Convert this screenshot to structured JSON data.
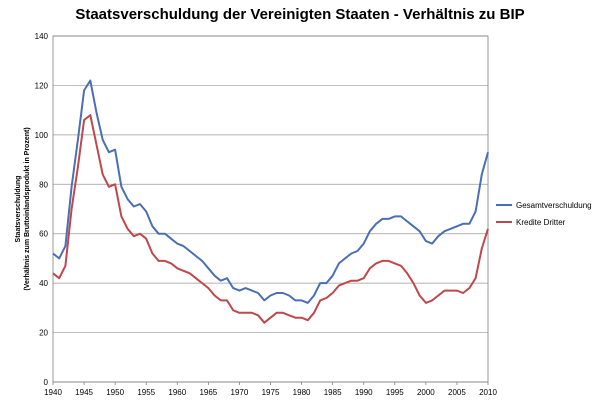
{
  "chart_data": {
    "type": "line",
    "title": "Staatsverschuldung der Vereinigten Staaten - Verhältnis zu BIP",
    "ylabel": "Staatsverschuldung",
    "ylabel_sub": "(Verhältnis zum Bruttoinlandsprodukt  in Prozent)",
    "xlabel": "",
    "ylim": [
      0,
      140
    ],
    "xlim": [
      1940,
      2010
    ],
    "yticks": [
      0,
      20,
      40,
      60,
      80,
      100,
      120,
      140
    ],
    "xticks": [
      1940,
      1945,
      1950,
      1955,
      1960,
      1965,
      1970,
      1975,
      1980,
      1985,
      1990,
      1995,
      2000,
      2005,
      2010
    ],
    "grid": "horizontal",
    "legend_position": "right",
    "x": [
      1940,
      1941,
      1942,
      1943,
      1944,
      1945,
      1946,
      1947,
      1948,
      1949,
      1950,
      1951,
      1952,
      1953,
      1954,
      1955,
      1956,
      1957,
      1958,
      1959,
      1960,
      1961,
      1962,
      1963,
      1964,
      1965,
      1966,
      1967,
      1968,
      1969,
      1970,
      1971,
      1972,
      1973,
      1974,
      1975,
      1976,
      1977,
      1978,
      1979,
      1980,
      1981,
      1982,
      1983,
      1984,
      1985,
      1986,
      1987,
      1988,
      1989,
      1990,
      1991,
      1992,
      1993,
      1994,
      1995,
      1996,
      1997,
      1998,
      1999,
      2000,
      2001,
      2002,
      2003,
      2004,
      2005,
      2006,
      2007,
      2008,
      2009,
      2010
    ],
    "series": [
      {
        "name": "Gesamtverschuldung",
        "color": "#4a6fb5",
        "values": [
          52,
          50,
          55,
          79,
          98,
          118,
          122,
          109,
          98,
          93,
          94,
          79,
          74,
          71,
          72,
          69,
          63,
          60,
          60,
          58,
          56,
          55,
          53,
          51,
          49,
          46,
          43,
          41,
          42,
          38,
          37,
          38,
          37,
          36,
          33,
          35,
          36,
          36,
          35,
          33,
          33,
          32,
          35,
          40,
          40,
          43,
          48,
          50,
          52,
          53,
          56,
          61,
          64,
          66,
          66,
          67,
          67,
          65,
          63,
          61,
          57,
          56,
          59,
          61,
          62,
          63,
          64,
          64,
          69,
          84,
          93
        ]
      },
      {
        "name": "Kredite Dritter",
        "color": "#c0474a",
        "values": [
          44,
          42,
          47,
          70,
          87,
          106,
          108,
          96,
          84,
          79,
          80,
          67,
          62,
          59,
          60,
          58,
          52,
          49,
          49,
          48,
          46,
          45,
          44,
          42,
          40,
          38,
          35,
          33,
          33,
          29,
          28,
          28,
          28,
          27,
          24,
          26,
          28,
          28,
          27,
          26,
          26,
          25,
          28,
          33,
          34,
          36,
          39,
          40,
          41,
          41,
          42,
          46,
          48,
          49,
          49,
          48,
          47,
          44,
          40,
          35,
          32,
          33,
          35,
          37,
          37,
          37,
          36,
          38,
          42,
          54,
          62
        ]
      }
    ]
  }
}
